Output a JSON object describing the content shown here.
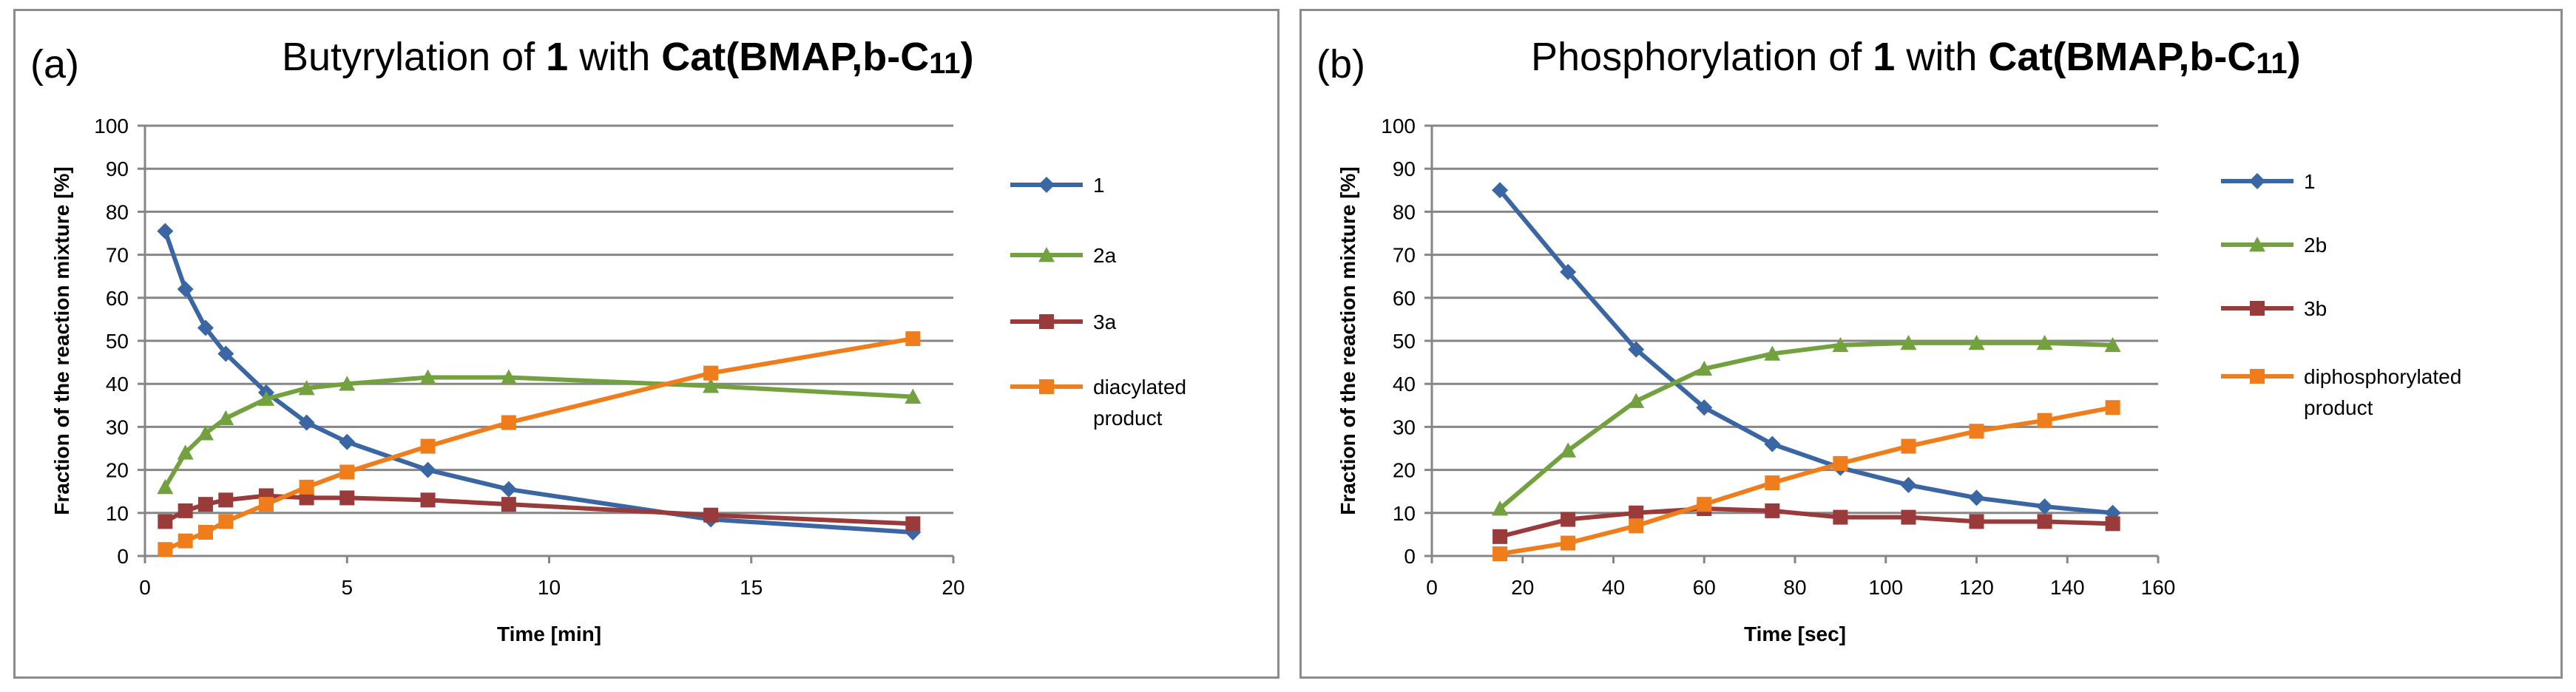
{
  "chart_data": [
    {
      "type": "line",
      "panel_tag": "(a)",
      "title": {
        "prefix": "Butyrylation of ",
        "compound": "1",
        "mid": " with ",
        "catalyst": "Cat(BMAP,b-C",
        "subscript": "11",
        "suffix": ")"
      },
      "xlabel": "Time [min]",
      "ylabel": "Fraction of the reaction mixture [%]",
      "xlim": [
        0,
        20
      ],
      "ylim": [
        0,
        100
      ],
      "xticks": [
        0,
        5,
        10,
        15,
        20
      ],
      "yticks": [
        0,
        10,
        20,
        30,
        40,
        50,
        60,
        70,
        80,
        90,
        100
      ],
      "series": [
        {
          "name": "1",
          "legend_lines": [
            "1"
          ],
          "color": "#3a66a3",
          "marker": "diamond",
          "x": [
            0.5,
            1,
            1.5,
            2,
            3,
            4,
            5,
            7,
            9,
            14,
            19
          ],
          "y": [
            75.5,
            62,
            53,
            47,
            38,
            31,
            26.5,
            20,
            15.5,
            8.5,
            5.5
          ]
        },
        {
          "name": "2a",
          "legend_lines": [
            "2a"
          ],
          "color": "#74a13f",
          "marker": "triangle",
          "x": [
            0.5,
            1,
            1.5,
            2,
            3,
            4,
            5,
            7,
            9,
            14,
            19
          ],
          "y": [
            16,
            24,
            28.5,
            32,
            36.5,
            39,
            40,
            41.5,
            41.5,
            39.5,
            37
          ]
        },
        {
          "name": "3a",
          "legend_lines": [
            "3a"
          ],
          "color": "#9a3b3b",
          "marker": "square",
          "x": [
            0.5,
            1,
            1.5,
            2,
            3,
            4,
            5,
            7,
            9,
            14,
            19
          ],
          "y": [
            8,
            10.5,
            12,
            13,
            14,
            13.5,
            13.5,
            13,
            12,
            9.5,
            7.5
          ]
        },
        {
          "name": "diacylated product",
          "legend_lines": [
            "diacylated",
            "product"
          ],
          "color": "#f07d1b",
          "marker": "square",
          "x": [
            0.5,
            1,
            1.5,
            2,
            3,
            4,
            5,
            7,
            9,
            14,
            19
          ],
          "y": [
            1.5,
            3.5,
            5.5,
            8,
            12,
            16,
            19.5,
            25.5,
            31,
            42.5,
            50.5
          ]
        }
      ]
    },
    {
      "type": "line",
      "panel_tag": "(b)",
      "title": {
        "prefix": "Phosphorylation  of ",
        "compound": "1",
        "mid": " with ",
        "catalyst": "Cat(BMAP,b-C",
        "subscript": "11",
        "suffix": ")"
      },
      "xlabel": "Time [sec]",
      "ylabel": "Fraction of the reaction mixture [%]",
      "xlim": [
        0,
        160
      ],
      "ylim": [
        0,
        100
      ],
      "xticks": [
        0,
        20,
        40,
        60,
        80,
        100,
        120,
        140,
        160
      ],
      "yticks": [
        0,
        10,
        20,
        30,
        40,
        50,
        60,
        70,
        80,
        90,
        100
      ],
      "series": [
        {
          "name": "1",
          "legend_lines": [
            "1"
          ],
          "color": "#3a66a3",
          "marker": "diamond",
          "x": [
            15,
            30,
            45,
            60,
            75,
            90,
            105,
            120,
            135,
            150
          ],
          "y": [
            85,
            66,
            48,
            34.5,
            26,
            20.5,
            16.5,
            13.5,
            11.5,
            10
          ]
        },
        {
          "name": "2b",
          "legend_lines": [
            "2b"
          ],
          "color": "#74a13f",
          "marker": "triangle",
          "x": [
            15,
            30,
            45,
            60,
            75,
            90,
            105,
            120,
            135,
            150
          ],
          "y": [
            11,
            24.5,
            36,
            43.5,
            47,
            49,
            49.5,
            49.5,
            49.5,
            49
          ]
        },
        {
          "name": "3b",
          "legend_lines": [
            "3b"
          ],
          "color": "#9a3b3b",
          "marker": "square",
          "x": [
            15,
            30,
            45,
            60,
            75,
            90,
            105,
            120,
            135,
            150
          ],
          "y": [
            4.5,
            8.5,
            10,
            11,
            10.5,
            9,
            9,
            8,
            8,
            7.5
          ]
        },
        {
          "name": "diphosphorylated product",
          "legend_lines": [
            "diphosphorylated",
            "product"
          ],
          "color": "#f07d1b",
          "marker": "square",
          "x": [
            15,
            30,
            45,
            60,
            75,
            90,
            105,
            120,
            135,
            150
          ],
          "y": [
            0.5,
            3,
            7,
            12,
            17,
            21.5,
            25.5,
            29,
            31.5,
            34.5
          ]
        }
      ]
    }
  ]
}
